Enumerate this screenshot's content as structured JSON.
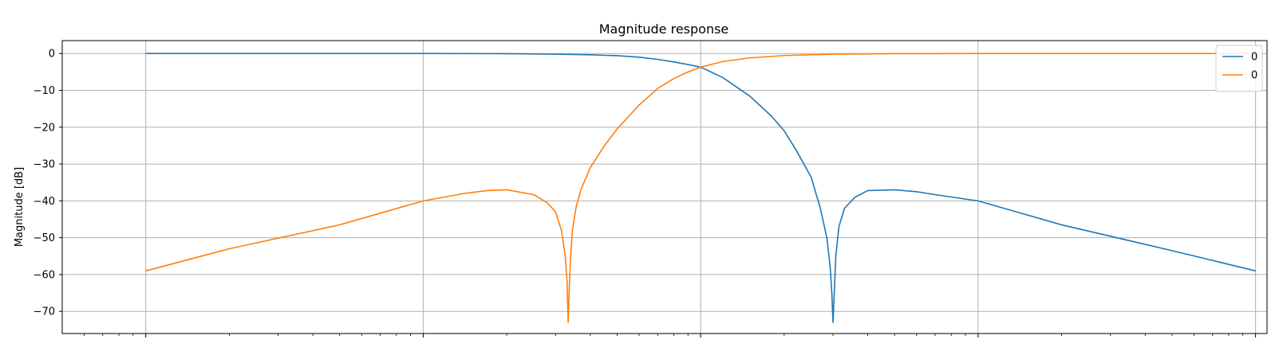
{
  "chart_data": {
    "type": "line",
    "title": "Magnitude response",
    "xlabel": "",
    "ylabel": "Magnitude [dB]",
    "xscale": "log",
    "xlim": [
      0.005,
      110
    ],
    "ylim": [
      -76,
      3.5
    ],
    "yticks": [
      0,
      -10,
      -20,
      -30,
      -40,
      -50,
      -60,
      -70
    ],
    "ytick_labels": [
      "0",
      "−10",
      "−20",
      "−30",
      "−40",
      "−50",
      "−60",
      "−70"
    ],
    "x_decades": [
      0.01,
      0.1,
      1,
      10,
      100
    ],
    "x_tick_labels_visible": false,
    "grid": true,
    "legend": "top-right",
    "series": [
      {
        "name": "0",
        "color": "#1f77b4",
        "x": [
          0.01,
          0.05,
          0.1,
          0.2,
          0.3,
          0.4,
          0.5,
          0.6,
          0.7,
          0.8,
          0.9,
          1,
          1.2,
          1.5,
          1.8,
          2,
          2.2,
          2.5,
          2.7,
          2.85,
          2.93,
          2.97,
          3.0,
          3.03,
          3.07,
          3.15,
          3.3,
          3.6,
          4,
          5,
          6,
          7,
          10,
          20,
          50,
          100
        ],
        "y": [
          0,
          0,
          0,
          -0.05,
          -0.2,
          -0.35,
          -0.6,
          -1.0,
          -1.6,
          -2.3,
          -3.0,
          -3.7,
          -6.5,
          -11.5,
          -17,
          -21,
          -26,
          -33.5,
          -42,
          -50,
          -58,
          -65,
          -73,
          -65,
          -55,
          -47,
          -42,
          -39,
          -37.2,
          -37,
          -37.5,
          -38.3,
          -40,
          -46.5,
          -53.5,
          -59
        ]
      },
      {
        "name": "0",
        "color": "#ff7f0e",
        "x": [
          0.01,
          0.02,
          0.05,
          0.1,
          0.14,
          0.17,
          0.2,
          0.25,
          0.28,
          0.3,
          0.315,
          0.325,
          0.33,
          0.333,
          0.3367,
          0.34,
          0.345,
          0.355,
          0.37,
          0.4,
          0.45,
          0.5,
          0.6,
          0.7,
          0.8,
          0.9,
          1,
          1.2,
          1.5,
          2,
          3,
          5,
          10,
          20,
          50,
          100
        ],
        "y": [
          -59,
          -53,
          -46.5,
          -40,
          -38,
          -37.2,
          -37,
          -38.3,
          -40.5,
          -43,
          -48,
          -55,
          -62,
          -73,
          -62,
          -55,
          -48,
          -42,
          -37,
          -31,
          -25,
          -20.5,
          -14,
          -9.5,
          -6.8,
          -5,
          -3.7,
          -2.2,
          -1.2,
          -0.55,
          -0.2,
          -0.06,
          0,
          0,
          0,
          0
        ]
      }
    ]
  }
}
